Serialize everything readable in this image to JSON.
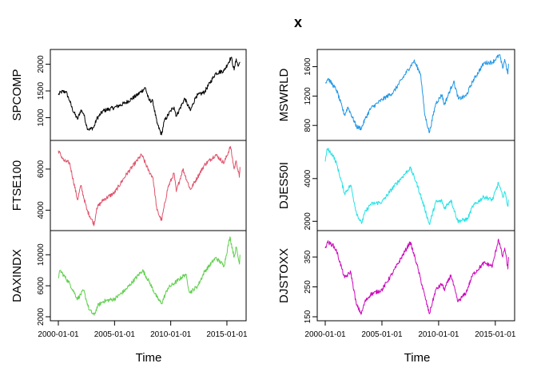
{
  "chart_data": {
    "type": "line",
    "title": "x",
    "xlabel": "Time",
    "x_ticks": [
      "2000-01-01",
      "2005-01-01",
      "2010-01-01",
      "2015-01-01"
    ],
    "x_range": [
      "2000-01-01",
      "2016-01-01"
    ],
    "panels": [
      {
        "name": "SPCOMP",
        "column": 0,
        "row": 0,
        "color": "#000000",
        "ylim": [
          650,
          2200
        ],
        "yticks": [
          1000,
          1500,
          2000
        ],
        "points": [
          [
            "2000-01-01",
            1430
          ],
          [
            "2000-04-01",
            1480
          ],
          [
            "2000-09-01",
            1490
          ],
          [
            "2001-01-01",
            1320
          ],
          [
            "2001-04-01",
            1160
          ],
          [
            "2001-09-15",
            970
          ],
          [
            "2002-01-01",
            1140
          ],
          [
            "2002-04-01",
            1080
          ],
          [
            "2002-07-20",
            820
          ],
          [
            "2002-10-10",
            780
          ],
          [
            "2003-03-01",
            820
          ],
          [
            "2003-06-01",
            980
          ],
          [
            "2004-01-01",
            1130
          ],
          [
            "2005-01-01",
            1190
          ],
          [
            "2006-01-01",
            1280
          ],
          [
            "2007-01-01",
            1420
          ],
          [
            "2007-10-01",
            1560
          ],
          [
            "2008-01-20",
            1330
          ],
          [
            "2008-06-01",
            1300
          ],
          [
            "2008-10-10",
            900
          ],
          [
            "2009-03-09",
            680
          ],
          [
            "2009-06-01",
            930
          ],
          [
            "2010-01-01",
            1130
          ],
          [
            "2010-04-20",
            1200
          ],
          [
            "2010-07-01",
            1030
          ],
          [
            "2011-04-01",
            1360
          ],
          [
            "2011-10-01",
            1130
          ],
          [
            "2012-04-01",
            1400
          ],
          [
            "2013-01-01",
            1480
          ],
          [
            "2014-01-01",
            1830
          ],
          [
            "2014-10-01",
            1880
          ],
          [
            "2015-05-20",
            2130
          ],
          [
            "2015-08-25",
            1890
          ],
          [
            "2015-11-01",
            2100
          ],
          [
            "2016-01-01",
            1960
          ],
          [
            "2016-03-01",
            2040
          ]
        ]
      },
      {
        "name": "FTSE100",
        "column": 0,
        "row": 1,
        "color": "#DF536B",
        "ylim": [
          3200,
          7200
        ],
        "yticks": [
          4000,
          6000
        ],
        "points": [
          [
            "2000-01-01",
            6900
          ],
          [
            "2000-07-01",
            6400
          ],
          [
            "2001-01-01",
            6300
          ],
          [
            "2001-09-15",
            4500
          ],
          [
            "2002-01-01",
            5200
          ],
          [
            "2002-07-20",
            4000
          ],
          [
            "2003-03-12",
            3300
          ],
          [
            "2003-06-01",
            4100
          ],
          [
            "2004-01-01",
            4500
          ],
          [
            "2005-01-01",
            4850
          ],
          [
            "2006-01-01",
            5700
          ],
          [
            "2007-06-01",
            6700
          ],
          [
            "2008-01-20",
            5900
          ],
          [
            "2008-06-01",
            5600
          ],
          [
            "2008-10-10",
            4000
          ],
          [
            "2009-03-09",
            3500
          ],
          [
            "2009-10-01",
            5100
          ],
          [
            "2010-04-20",
            5800
          ],
          [
            "2010-07-01",
            4900
          ],
          [
            "2011-02-01",
            6000
          ],
          [
            "2011-10-01",
            5000
          ],
          [
            "2013-01-01",
            6200
          ],
          [
            "2014-01-01",
            6700
          ],
          [
            "2014-10-01",
            6300
          ],
          [
            "2015-04-27",
            7100
          ],
          [
            "2015-08-25",
            6000
          ],
          [
            "2015-11-01",
            6400
          ],
          [
            "2016-02-11",
            5600
          ],
          [
            "2016-03-01",
            6100
          ]
        ]
      },
      {
        "name": "DAXINDX",
        "column": 0,
        "row": 2,
        "color": "#61D04F",
        "ylim": [
          2000,
          12600
        ],
        "yticks": [
          2000,
          6000,
          10000
        ],
        "points": [
          [
            "2000-01-01",
            7000
          ],
          [
            "2000-03-01",
            8000
          ],
          [
            "2000-07-01",
            7300
          ],
          [
            "2001-01-01",
            6300
          ],
          [
            "2001-09-15",
            4300
          ],
          [
            "2002-04-01",
            5400
          ],
          [
            "2002-10-01",
            2900
          ],
          [
            "2003-03-12",
            2200
          ],
          [
            "2003-07-01",
            3400
          ],
          [
            "2004-01-01",
            4000
          ],
          [
            "2005-01-01",
            4300
          ],
          [
            "2006-01-01",
            5500
          ],
          [
            "2007-07-01",
            8000
          ],
          [
            "2008-01-20",
            6600
          ],
          [
            "2008-10-10",
            4500
          ],
          [
            "2009-03-09",
            3700
          ],
          [
            "2009-10-01",
            5700
          ],
          [
            "2010-04-20",
            6300
          ],
          [
            "2011-05-01",
            7500
          ],
          [
            "2011-09-12",
            5100
          ],
          [
            "2012-06-01",
            6000
          ],
          [
            "2013-01-01",
            7800
          ],
          [
            "2014-01-01",
            9600
          ],
          [
            "2014-10-01",
            8600
          ],
          [
            "2015-04-10",
            12300
          ],
          [
            "2015-08-25",
            9700
          ],
          [
            "2015-11-01",
            11000
          ],
          [
            "2016-02-11",
            8800
          ],
          [
            "2016-03-01",
            10000
          ]
        ]
      },
      {
        "name": "MSWRLD",
        "column": 1,
        "row": 0,
        "color": "#2297E6",
        "ylim": [
          650,
          1780
        ],
        "yticks": [
          800,
          1200,
          1600
        ],
        "points": [
          [
            "2000-01-01",
            1380
          ],
          [
            "2000-04-01",
            1440
          ],
          [
            "2001-01-01",
            1280
          ],
          [
            "2001-09-15",
            940
          ],
          [
            "2002-01-01",
            1050
          ],
          [
            "2002-10-10",
            780
          ],
          [
            "2003-03-12",
            760
          ],
          [
            "2003-07-01",
            880
          ],
          [
            "2004-01-01",
            1030
          ],
          [
            "2005-01-01",
            1150
          ],
          [
            "2006-01-01",
            1250
          ],
          [
            "2007-10-31",
            1680
          ],
          [
            "2008-06-01",
            1500
          ],
          [
            "2008-10-10",
            950
          ],
          [
            "2009-03-09",
            700
          ],
          [
            "2009-10-01",
            1100
          ],
          [
            "2010-04-20",
            1220
          ],
          [
            "2010-07-01",
            1080
          ],
          [
            "2011-05-01",
            1400
          ],
          [
            "2011-10-01",
            1160
          ],
          [
            "2012-06-01",
            1200
          ],
          [
            "2013-01-01",
            1400
          ],
          [
            "2014-01-01",
            1650
          ],
          [
            "2014-10-01",
            1660
          ],
          [
            "2015-05-20",
            1760
          ],
          [
            "2015-08-25",
            1580
          ],
          [
            "2015-11-01",
            1700
          ],
          [
            "2016-02-11",
            1500
          ],
          [
            "2016-03-01",
            1640
          ]
        ]
      },
      {
        "name": "DJES50I",
        "column": 1,
        "row": 1,
        "color": "#28E2E5",
        "ylim": [
          1750,
          5600
        ],
        "yticks": [
          2000,
          4000
        ],
        "points": [
          [
            "2000-01-01",
            4800
          ],
          [
            "2000-03-06",
            5400
          ],
          [
            "2000-09-01",
            5100
          ],
          [
            "2001-01-01",
            4700
          ],
          [
            "2001-09-15",
            3300
          ],
          [
            "2002-04-01",
            3700
          ],
          [
            "2002-10-01",
            2400
          ],
          [
            "2003-03-12",
            1900
          ],
          [
            "2003-07-01",
            2400
          ],
          [
            "2004-01-01",
            2800
          ],
          [
            "2005-01-01",
            2900
          ],
          [
            "2006-01-01",
            3600
          ],
          [
            "2007-07-01",
            4500
          ],
          [
            "2008-01-20",
            3800
          ],
          [
            "2008-10-10",
            2600
          ],
          [
            "2009-03-09",
            1850
          ],
          [
            "2009-10-01",
            2900
          ],
          [
            "2010-04-20",
            2950
          ],
          [
            "2010-07-01",
            2600
          ],
          [
            "2011-02-01",
            3000
          ],
          [
            "2011-09-12",
            2000
          ],
          [
            "2012-07-20",
            2100
          ],
          [
            "2013-01-01",
            2700
          ],
          [
            "2014-01-01",
            3150
          ],
          [
            "2014-10-01",
            3000
          ],
          [
            "2015-04-13",
            3800
          ],
          [
            "2015-08-25",
            3150
          ],
          [
            "2015-11-01",
            3400
          ],
          [
            "2016-02-11",
            2700
          ],
          [
            "2016-03-01",
            3000
          ]
        ]
      },
      {
        "name": "DJSTOXX",
        "column": 1,
        "row": 2,
        "color": "#CD0BBC",
        "ylim": [
          150,
          425
        ],
        "yticks": [
          150,
          250,
          350
        ],
        "points": [
          [
            "2000-01-01",
            380
          ],
          [
            "2000-03-06",
            400
          ],
          [
            "2000-09-01",
            390
          ],
          [
            "2001-01-01",
            370
          ],
          [
            "2001-09-15",
            280
          ],
          [
            "2002-04-01",
            300
          ],
          [
            "2002-10-01",
            190
          ],
          [
            "2003-03-12",
            160
          ],
          [
            "2003-07-01",
            200
          ],
          [
            "2004-01-01",
            225
          ],
          [
            "2005-01-01",
            240
          ],
          [
            "2006-01-01",
            300
          ],
          [
            "2007-07-01",
            400
          ],
          [
            "2008-01-20",
            330
          ],
          [
            "2008-10-10",
            220
          ],
          [
            "2009-03-09",
            160
          ],
          [
            "2009-10-01",
            240
          ],
          [
            "2010-04-20",
            260
          ],
          [
            "2010-07-01",
            240
          ],
          [
            "2011-02-01",
            290
          ],
          [
            "2011-09-12",
            200
          ],
          [
            "2012-06-01",
            230
          ],
          [
            "2013-01-01",
            290
          ],
          [
            "2014-01-01",
            330
          ],
          [
            "2014-10-01",
            320
          ],
          [
            "2015-04-13",
            410
          ],
          [
            "2015-08-25",
            350
          ],
          [
            "2015-11-01",
            380
          ],
          [
            "2016-02-11",
            310
          ],
          [
            "2016-03-01",
            350
          ]
        ]
      }
    ]
  }
}
